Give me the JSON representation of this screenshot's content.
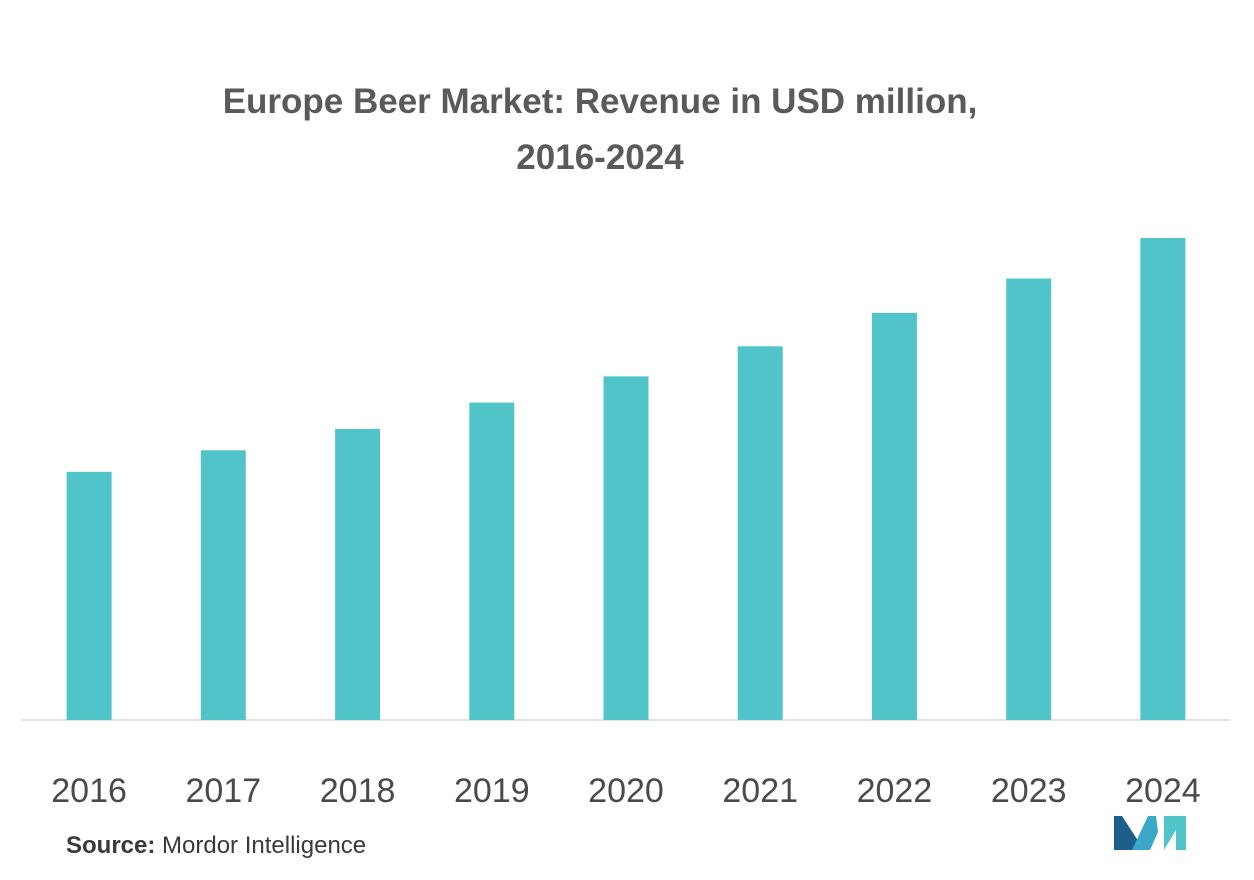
{
  "chart_data": {
    "type": "bar",
    "title_line1": "Europe Beer Market: Revenue in USD million,",
    "title_line2": "2016-2024",
    "categories": [
      "2016",
      "2017",
      "2018",
      "2019",
      "2020",
      "2021",
      "2022",
      "2023",
      "2024"
    ],
    "values": [
      52,
      56.5,
      61,
      66.5,
      72,
      78.3,
      85.3,
      92.5,
      101
    ],
    "xlabel": "",
    "ylabel": "",
    "ylim": [
      0,
      110
    ],
    "grid": false,
    "legend": "none",
    "bar_color": "#50c4c8"
  },
  "footer": {
    "source_label": "Source:",
    "source_text": " Mordor Intelligence"
  },
  "logo": {
    "icon": "mordor-intelligence-logo",
    "colors": [
      "#1d5f8a",
      "#3aa6c8",
      "#50c4c8"
    ]
  }
}
